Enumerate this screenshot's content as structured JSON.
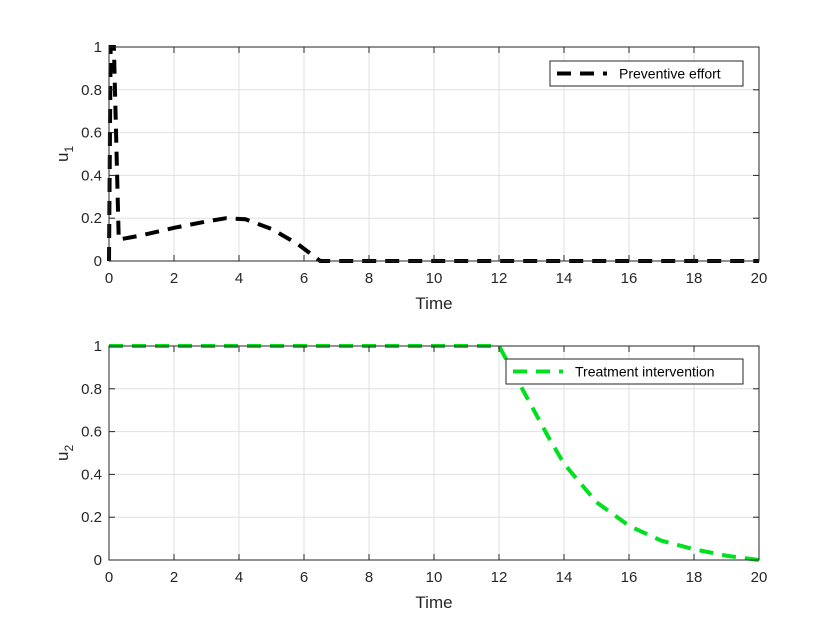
{
  "chart_data": [
    {
      "type": "line",
      "title": "",
      "xlabel": "Time",
      "ylabel": "u_1",
      "ylabel_main": "u",
      "ylabel_sub": "1",
      "xlim": [
        0,
        20
      ],
      "ylim": [
        0,
        1
      ],
      "xticks": [
        "0",
        "2",
        "4",
        "6",
        "8",
        "10",
        "12",
        "14",
        "16",
        "18",
        "20"
      ],
      "yticks": [
        "0",
        "0.2",
        "0.4",
        "0.6",
        "0.8",
        "1"
      ],
      "grid": true,
      "legend_position": "upper right",
      "series": [
        {
          "name": "Preventive effort",
          "color": "#000000",
          "style": "dashed",
          "x": [
            0,
            0.05,
            0.15,
            0.3,
            1,
            2,
            3,
            3.6,
            4.2,
            5,
            5.8,
            6.5,
            7,
            10,
            14,
            20
          ],
          "y": [
            0,
            1,
            1,
            0.1,
            0.12,
            0.155,
            0.185,
            0.2,
            0.195,
            0.15,
            0.08,
            0,
            0,
            0,
            0,
            0
          ]
        }
      ]
    },
    {
      "type": "line",
      "title": "",
      "xlabel": "Time",
      "ylabel": "u_2",
      "ylabel_main": "u",
      "ylabel_sub": "2",
      "xlim": [
        0,
        20
      ],
      "ylim": [
        0,
        1
      ],
      "xticks": [
        "0",
        "2",
        "4",
        "6",
        "8",
        "10",
        "12",
        "14",
        "16",
        "18",
        "20"
      ],
      "yticks": [
        "0",
        "0.2",
        "0.4",
        "0.6",
        "0.8",
        "1"
      ],
      "grid": true,
      "legend_position": "upper right",
      "series": [
        {
          "name": "Treatment intervention",
          "color": "#00e020",
          "style": "dashed",
          "x": [
            0,
            4,
            8,
            12,
            12.5,
            13,
            13.5,
            14,
            15,
            16,
            17,
            18,
            19,
            20
          ],
          "y": [
            1,
            1,
            1,
            1,
            0.86,
            0.72,
            0.58,
            0.45,
            0.27,
            0.16,
            0.09,
            0.05,
            0.02,
            0
          ]
        }
      ]
    }
  ]
}
